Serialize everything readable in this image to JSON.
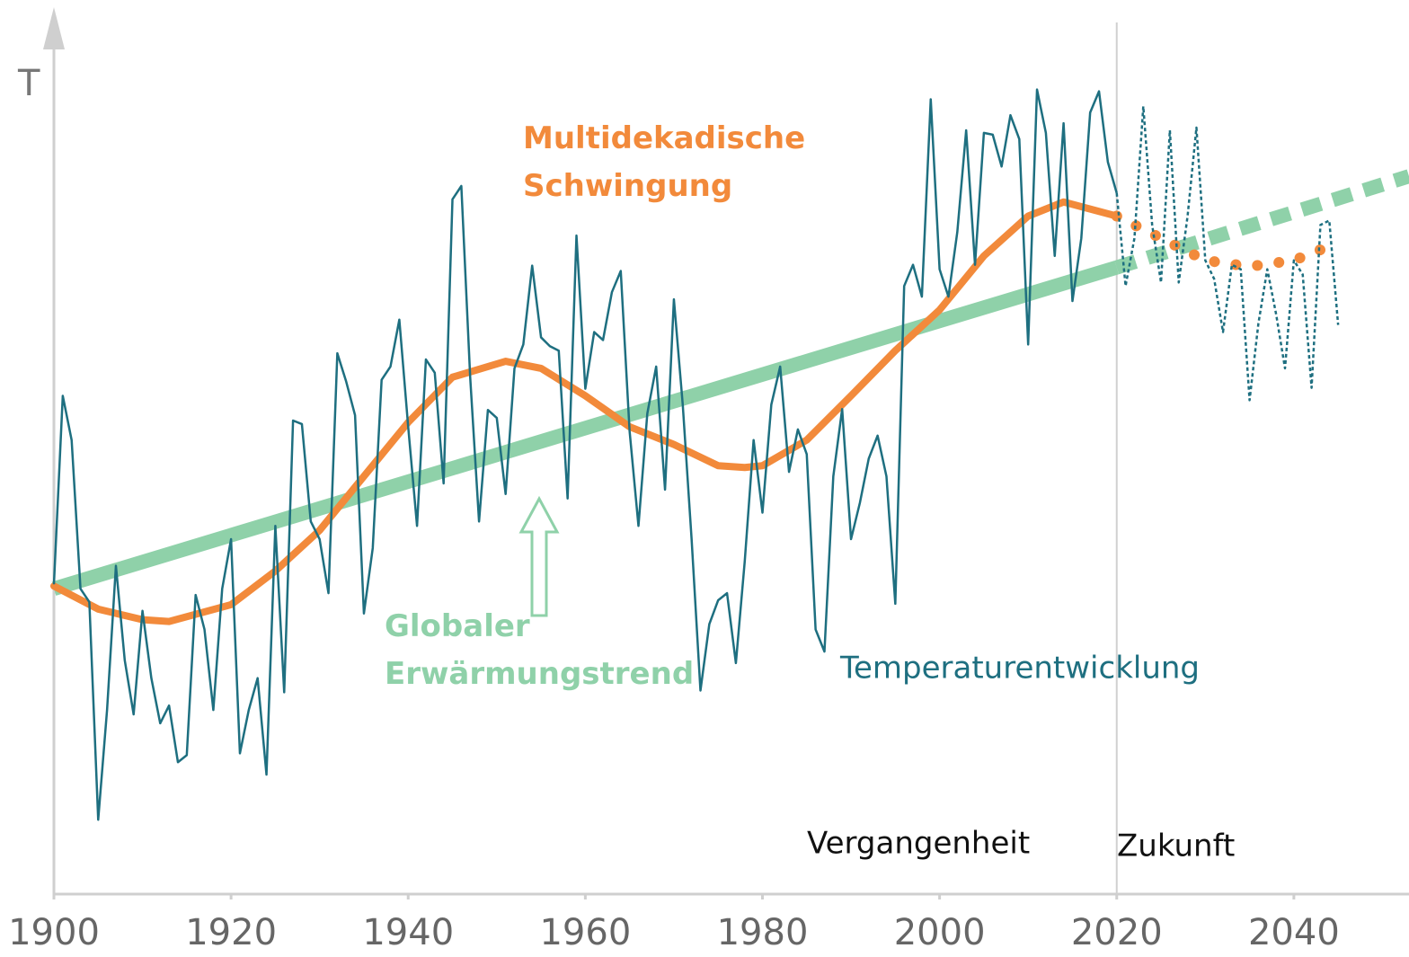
{
  "chart_data": {
    "type": "line",
    "ylabel": "T",
    "xlim": [
      1900,
      2053
    ],
    "ylim": [
      0,
      100
    ],
    "xticks": [
      1900,
      1920,
      1940,
      1960,
      1980,
      2000,
      2020,
      2040
    ],
    "xdivider": 2020,
    "annotations": [
      "Vergangenheit",
      "Zukunft"
    ],
    "series": [
      {
        "name": "Temperaturentwicklung",
        "color": "#1e6f80",
        "style": "solid",
        "x": [
          1900,
          1901,
          1902,
          1903,
          1904,
          1905,
          1906,
          1907,
          1908,
          1909,
          1910,
          1911,
          1912,
          1913,
          1914,
          1915,
          1916,
          1917,
          1918,
          1919,
          1920,
          1921,
          1922,
          1923,
          1924,
          1925,
          1926,
          1927,
          1928,
          1929,
          1930,
          1931,
          1932,
          1933,
          1934,
          1935,
          1936,
          1937,
          1938,
          1939,
          1940,
          1941,
          1942,
          1943,
          1944,
          1945,
          1946,
          1947,
          1948,
          1949,
          1950,
          1951,
          1952,
          1953,
          1954,
          1955,
          1956,
          1957,
          1958,
          1959,
          1960,
          1961,
          1962,
          1963,
          1964,
          1965,
          1966,
          1967,
          1968,
          1969,
          1970,
          1971,
          1972,
          1973,
          1974,
          1975,
          1976,
          1977,
          1978,
          1979,
          1980,
          1981,
          1982,
          1983,
          1984,
          1985,
          1986,
          1987,
          1988,
          1989,
          1990,
          1991,
          1992,
          1993,
          1994,
          1995,
          1996,
          1997,
          1998,
          1999,
          2000,
          2001,
          2002,
          2003,
          2004,
          2005,
          2006,
          2007,
          2008,
          2009,
          2010,
          2011,
          2012,
          2013,
          2014,
          2015,
          2016,
          2017,
          2018,
          2019,
          2020
        ],
        "values": [
          35,
          56.3,
          51.3,
          34.5,
          33,
          8.4,
          20.8,
          37.1,
          26.4,
          20.3,
          32,
          24.4,
          19.3,
          21.3,
          14.9,
          15.7,
          33.8,
          29.9,
          20.8,
          34.5,
          40.1,
          15.9,
          20.8,
          24.4,
          13.5,
          41.6,
          22.8,
          53.5,
          53.1,
          42.1,
          40.1,
          34,
          61.1,
          57.9,
          54.1,
          31.7,
          39.1,
          58.1,
          59.6,
          64.9,
          52.8,
          41.6,
          60.4,
          58.9,
          46.4,
          78.5,
          80,
          58.4,
          42.1,
          54.7,
          53.8,
          45.2,
          59.4,
          62.1,
          71,
          62.9,
          61.9,
          61.4,
          44.7,
          74.4,
          57.1,
          63.5,
          62.6,
          68,
          70.4,
          52.3,
          41.6,
          54.3,
          59.6,
          45.7,
          67.2,
          55.3,
          40.1,
          23,
          30.5,
          33.2,
          34,
          26.1,
          37.6,
          51.3,
          43.1,
          55.3,
          59.6,
          47.7,
          52.5,
          49.7,
          29.9,
          27.4,
          47.2,
          54.8,
          40.1,
          44.2,
          49.2,
          51.8,
          47.2,
          32.8,
          68.7,
          71.1,
          67.5,
          89.8,
          70.6,
          67.5,
          74.8,
          86.3,
          71.1,
          86,
          85.8,
          82.2,
          88,
          85.3,
          62.1,
          90.9,
          86,
          72.1,
          87.1,
          67,
          74.1,
          88.3,
          90.7,
          82.7,
          79.2
        ]
      },
      {
        "color": "#1e6f80",
        "style": "dotted-thin",
        "x": [
          2020,
          2021,
          2022,
          2023,
          2024,
          2025,
          2026,
          2027,
          2028,
          2029,
          2030,
          2031,
          2032,
          2033,
          2034,
          2035,
          2036,
          2037,
          2038,
          2039,
          2040,
          2041,
          2042,
          2043,
          2044,
          2045
        ],
        "values": [
          79.2,
          68.7,
          74.1,
          89,
          75.6,
          69.1,
          86.3,
          69.1,
          76.6,
          86.6,
          71.6,
          69.5,
          63.5,
          71.1,
          70.6,
          55.8,
          64.5,
          70.6,
          65.5,
          59.4,
          71.6,
          70,
          57.2,
          75.6,
          76.1,
          64.3
        ]
      },
      {
        "name": "Globaler Erwärmungstrend",
        "color": "#8fd1a9",
        "style": "thick",
        "x": [
          1900,
          2020
        ],
        "values": [
          34.5,
          70.8
        ]
      },
      {
        "color": "#8fd1a9",
        "style": "thick-dashed",
        "x": [
          2020,
          2053
        ],
        "values": [
          70.8,
          81.1
        ]
      },
      {
        "name": "Multidekadische Schwingung",
        "color": "#f28a3b",
        "style": "medium",
        "x": [
          1900,
          1905,
          1910,
          1913,
          1920,
          1925,
          1930,
          1935,
          1940,
          1945,
          1951,
          1955,
          1960,
          1965,
          1970,
          1975,
          1978,
          1980,
          1985,
          1990,
          1995,
          2000,
          2005,
          2010,
          2014,
          2020
        ],
        "values": [
          34.8,
          32.2,
          31,
          30.8,
          32.7,
          36.5,
          41.1,
          47.2,
          53.3,
          58.4,
          60.2,
          59.4,
          56.3,
          52.8,
          50.8,
          48.4,
          48.2,
          48.4,
          51.3,
          56.3,
          61.4,
          66,
          72.1,
          76.6,
          78.2,
          76.6
        ]
      },
      {
        "color": "#f28a3b",
        "style": "dotted",
        "x": [
          2020,
          2025,
          2030,
          2035,
          2040,
          2045
        ],
        "values": [
          76.6,
          74.1,
          71.6,
          70.9,
          71.6,
          73.6
        ]
      }
    ]
  }
}
